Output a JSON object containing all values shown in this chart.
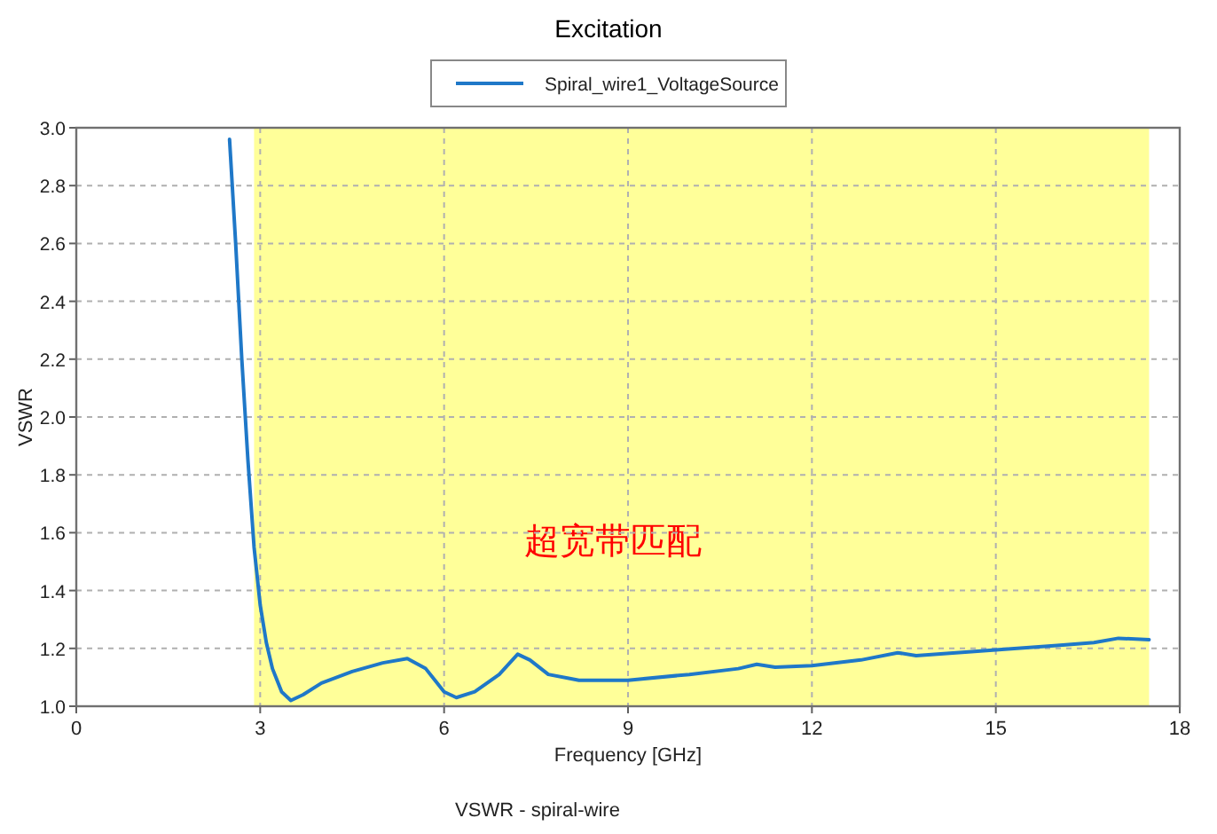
{
  "chart_data": {
    "type": "line",
    "title": "Excitation",
    "xlabel": "Frequency [GHz]",
    "ylabel": "VSWR",
    "annotations": [
      "VSWR - spiral-wire"
    ],
    "series": [
      {
        "name": "Spiral_wire1_VoltageSource",
        "color": "#1f78c8",
        "x": [
          2.5,
          2.6,
          2.7,
          2.8,
          2.9,
          3.0,
          3.1,
          3.2,
          3.35,
          3.5,
          3.7,
          4.0,
          4.5,
          5.0,
          5.4,
          5.7,
          6.0,
          6.2,
          6.5,
          6.9,
          7.2,
          7.4,
          7.7,
          8.2,
          9,
          10,
          10.8,
          11.1,
          11.4,
          12,
          12.8,
          13.4,
          13.7,
          15,
          16,
          16.6,
          17,
          17.5
        ],
        "values": [
          2.96,
          2.6,
          2.2,
          1.85,
          1.55,
          1.35,
          1.22,
          1.13,
          1.05,
          1.02,
          1.04,
          1.08,
          1.12,
          1.15,
          1.165,
          1.13,
          1.05,
          1.03,
          1.05,
          1.11,
          1.18,
          1.16,
          1.11,
          1.09,
          1.09,
          1.11,
          1.13,
          1.145,
          1.135,
          1.14,
          1.16,
          1.185,
          1.175,
          1.195,
          1.21,
          1.22,
          1.235,
          1.23
        ]
      }
    ],
    "bands": [
      {
        "axis": "x",
        "from": 2.9,
        "to": 17.5,
        "label": "超宽带匹配",
        "color": "#ffff99"
      }
    ],
    "xlim": [
      0,
      18
    ],
    "xticks": [
      0,
      3,
      6,
      9,
      12,
      15,
      18
    ],
    "ylim": [
      1.0,
      3.0
    ],
    "yticks": [
      {
        "value": 1.0,
        "label": "1.0"
      },
      {
        "value": 1.2,
        "label": "1.2"
      },
      {
        "value": 1.4,
        "label": "1.4"
      },
      {
        "value": 1.6,
        "label": "1.6"
      },
      {
        "value": 1.8,
        "label": "1.8"
      },
      {
        "value": 2.0,
        "label": "2.0"
      },
      {
        "value": 2.2,
        "label": "2.2"
      },
      {
        "value": 2.4,
        "label": "2.4"
      },
      {
        "value": 2.6,
        "label": "2.6"
      },
      {
        "value": 2.8,
        "label": "2.8"
      },
      {
        "value": 3.0,
        "label": "3.0"
      }
    ],
    "grid": true,
    "legend": "top",
    "line_style": "solid",
    "marker": "none"
  }
}
